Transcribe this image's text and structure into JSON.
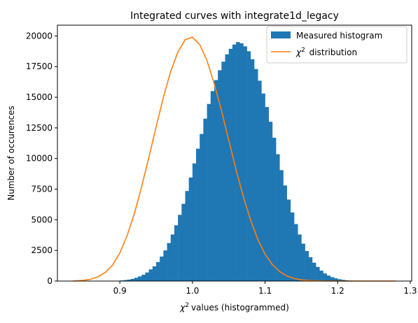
{
  "chart_data": {
    "type": "bar",
    "title": "Integrated curves with integrate1d_legacy",
    "xlabel": "values (histogrammed)",
    "xlabel_symbol": "χ",
    "xlabel_sup": "2",
    "ylabel": "Number of occurences",
    "xlim": [
      0.814,
      1.302
    ],
    "ylim": [
      0,
      20880
    ],
    "xticks": [
      "0.9",
      "1.0",
      "1.1",
      "1.2",
      "1.3"
    ],
    "xtick_values": [
      0.9,
      1.0,
      1.1,
      1.2,
      1.3
    ],
    "yticks": [
      "0",
      "2500",
      "5000",
      "7500",
      "10000",
      "12500",
      "15000",
      "17500",
      "20000"
    ],
    "ytick_values": [
      0,
      2500,
      5000,
      7500,
      10000,
      12500,
      15000,
      17500,
      20000
    ],
    "legend": {
      "position": "top-right",
      "entries": [
        {
          "label": "Measured histogram",
          "color": "#1f77b4",
          "kind": "patch"
        },
        {
          "label": " distribution",
          "symbol": "χ",
          "sup": "2",
          "color": "#ff7f0e",
          "kind": "line"
        }
      ]
    },
    "series": [
      {
        "name": "Measured histogram",
        "kind": "histogram",
        "color": "#1f77b4",
        "bin_start": 0.835,
        "bin_width": 0.005,
        "values": [
          0,
          0,
          0,
          0,
          0,
          0,
          0,
          0,
          0,
          0,
          10,
          15,
          30,
          50,
          80,
          120,
          180,
          270,
          380,
          520,
          700,
          950,
          1200,
          1550,
          2000,
          2500,
          3100,
          3800,
          4550,
          5400,
          6300,
          7350,
          8450,
          9600,
          10800,
          12000,
          13250,
          14450,
          15500,
          16400,
          17200,
          17900,
          18500,
          18950,
          19300,
          19500,
          19400,
          19150,
          18750,
          18100,
          17300,
          16350,
          15300,
          14200,
          13000,
          11700,
          10350,
          9050,
          7800,
          6650,
          5600,
          4650,
          3800,
          3050,
          2450,
          1950,
          1500,
          1150,
          850,
          620,
          450,
          320,
          220,
          150,
          100,
          65,
          40,
          25,
          15,
          10,
          5,
          0,
          0,
          0,
          0,
          0,
          0,
          0,
          0,
          0
        ]
      },
      {
        "name": "distribution",
        "kind": "line",
        "color": "#ff7f0e",
        "x": [
          0.835,
          0.84,
          0.85,
          0.86,
          0.87,
          0.88,
          0.89,
          0.9,
          0.91,
          0.92,
          0.93,
          0.94,
          0.95,
          0.96,
          0.97,
          0.98,
          0.99,
          1.0,
          1.01,
          1.02,
          1.03,
          1.04,
          1.05,
          1.06,
          1.07,
          1.08,
          1.09,
          1.1,
          1.11,
          1.12,
          1.13,
          1.14,
          1.15,
          1.16,
          1.18,
          1.2,
          1.22,
          1.25,
          1.28
        ],
        "y": [
          0,
          20,
          60,
          150,
          350,
          700,
          1300,
          2300,
          3700,
          5500,
          7700,
          10100,
          12600,
          15000,
          17100,
          18700,
          19700,
          19900,
          19300,
          18000,
          16100,
          13900,
          11500,
          9100,
          6900,
          5000,
          3400,
          2200,
          1350,
          780,
          420,
          210,
          100,
          45,
          10,
          0,
          0,
          0,
          0
        ]
      }
    ]
  }
}
